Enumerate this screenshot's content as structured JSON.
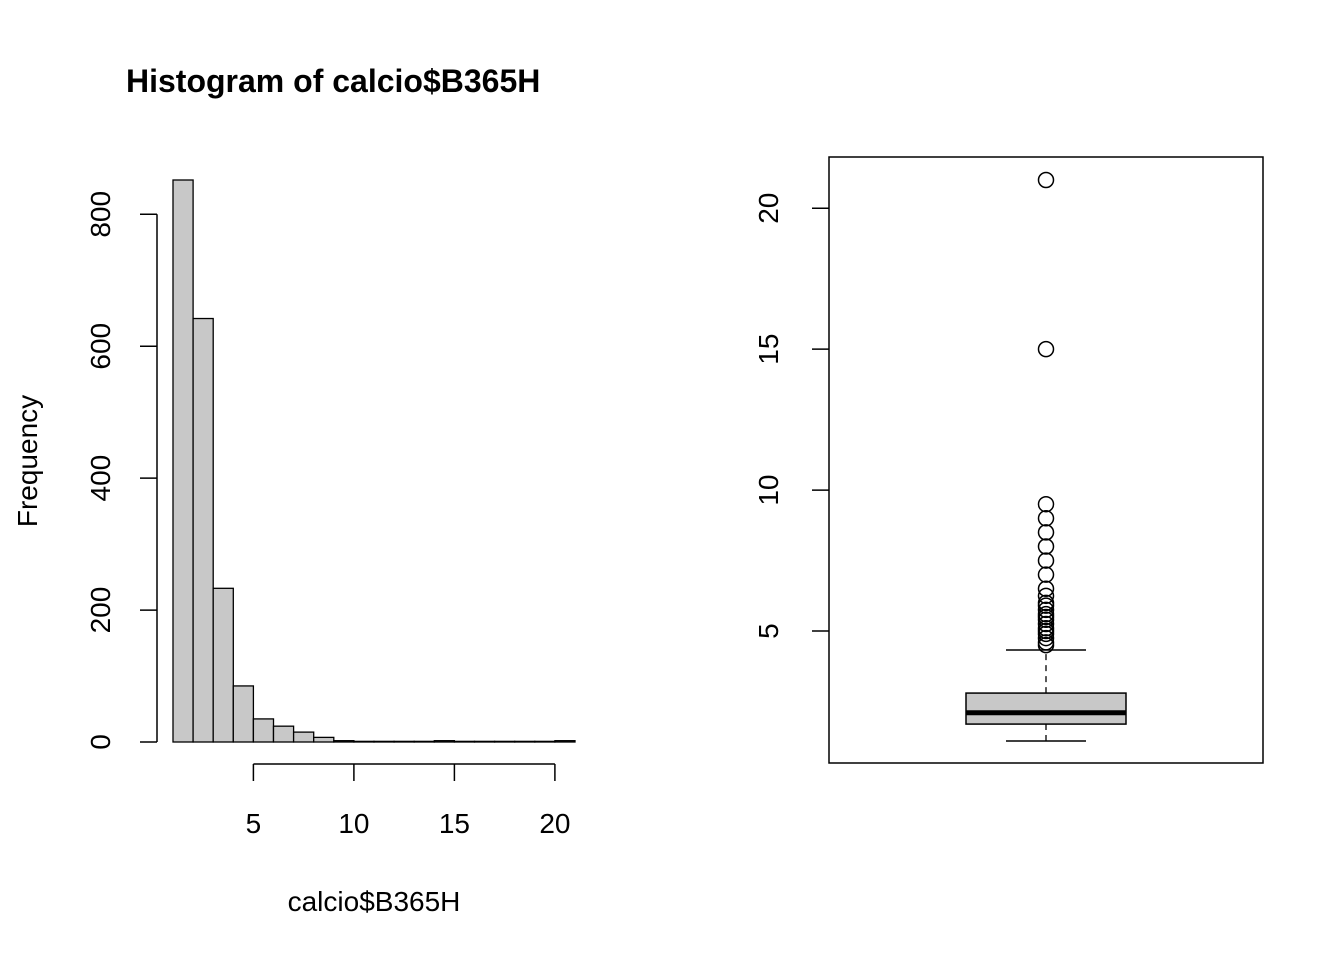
{
  "chart_data": [
    {
      "type": "bar",
      "subtype": "histogram",
      "title": "Histogram of calcio$B365H",
      "xlabel": "calcio$B365H",
      "ylabel": "Frequency",
      "bin_edges": [
        1,
        2,
        3,
        4,
        5,
        6,
        7,
        8,
        9,
        10,
        11,
        12,
        13,
        14,
        15,
        16,
        17,
        18,
        19,
        20,
        21
      ],
      "values": [
        852,
        642,
        233,
        85,
        35,
        24,
        15,
        7,
        2,
        1,
        1,
        1,
        1,
        2,
        1,
        1,
        1,
        1,
        1,
        2
      ],
      "xlim": [
        1,
        21
      ],
      "ylim": [
        0,
        852
      ],
      "x_ticks": [
        5,
        10,
        15,
        20
      ],
      "y_ticks": [
        0,
        200,
        400,
        600,
        800
      ],
      "bar_color": "#c8c8c8"
    },
    {
      "type": "boxplot",
      "title": "",
      "xlabel": "",
      "ylabel": "",
      "ylim": [
        1.1,
        21
      ],
      "y_ticks": [
        5,
        10,
        15,
        20
      ],
      "whisker_low": 1.1,
      "q1": 1.7,
      "median": 2.1,
      "q3": 2.8,
      "whisker_high": 4.33,
      "outliers": [
        4.5,
        4.6,
        4.75,
        4.9,
        5.0,
        5.1,
        5.25,
        5.4,
        5.5,
        5.6,
        5.75,
        5.9,
        6.0,
        6.25,
        6.5,
        7.0,
        7.5,
        8.0,
        8.5,
        9.0,
        9.5,
        15.0,
        21.0
      ],
      "box_color": "#c8c8c8"
    }
  ],
  "colors": {
    "bar_fill": "#c8c8c8",
    "stroke": "#000000",
    "background": "#ffffff"
  }
}
